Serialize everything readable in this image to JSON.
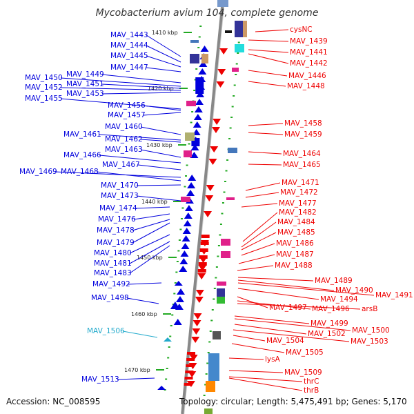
{
  "title": "Mycobacterium avium 104, complete genome",
  "footer": {
    "accession": "Accession: NC_008595",
    "topology": "Topology: circular; Length: 5,475,491 bp; Genes: 5,170"
  },
  "colors": {
    "plus_strand": "#0000dd",
    "minus_strand": "#ee0000",
    "highlight": "#22aacc",
    "backbone": "#888888",
    "tick": "#22aa22"
  },
  "ticks": [
    "1410 kbp",
    "1420 kbp",
    "1430 kbp",
    "1440 kbp",
    "1450 kbp",
    "1460 kbp",
    "1470 kbp"
  ],
  "left_labels": [
    "MAV_1443",
    "MAV_1444",
    "MAV_1445",
    "MAV_1447",
    "MAV_1449",
    "MAV_1450",
    "MAV_1451",
    "MAV_1452",
    "MAV_1453",
    "MAV_1455",
    "MAV_1456",
    "MAV_1457",
    "MAV_1460",
    "MAV_1461",
    "MAV_1462",
    "MAV_1463",
    "MAV_1466",
    "MAV_1467",
    "MAV_1469",
    "MAV_1468",
    "MAV_1470",
    "MAV_1473",
    "MAV_1474",
    "MAV_1476",
    "MAV_1478",
    "MAV_1479",
    "MAV_1480",
    "MAV_1481",
    "MAV_1483",
    "MAV_1492",
    "MAV_1498",
    "MAV_1506",
    "MAV_1513"
  ],
  "right_labels": [
    "cysNC",
    "MAV_1439",
    "MAV_1441",
    "MAV_1442",
    "MAV_1446",
    "MAV_1448",
    "MAV_1458",
    "MAV_1459",
    "MAV_1464",
    "MAV_1465",
    "MAV_1471",
    "MAV_1472",
    "MAV_1477",
    "MAV_1482",
    "MAV_1484",
    "MAV_1485",
    "MAV_1486",
    "MAV_1487",
    "MAV_1488",
    "MAV_1489",
    "MAV_1490",
    "MAV_1491",
    "MAV_1494",
    "MAV_1497",
    "MAV_1496",
    "arsB",
    "MAV_1499",
    "MAV_1500",
    "MAV_1502",
    "MAV_1503",
    "MAV_1504",
    "MAV_1505",
    "lysA",
    "MAV_1509",
    "thrC",
    "thrB"
  ]
}
